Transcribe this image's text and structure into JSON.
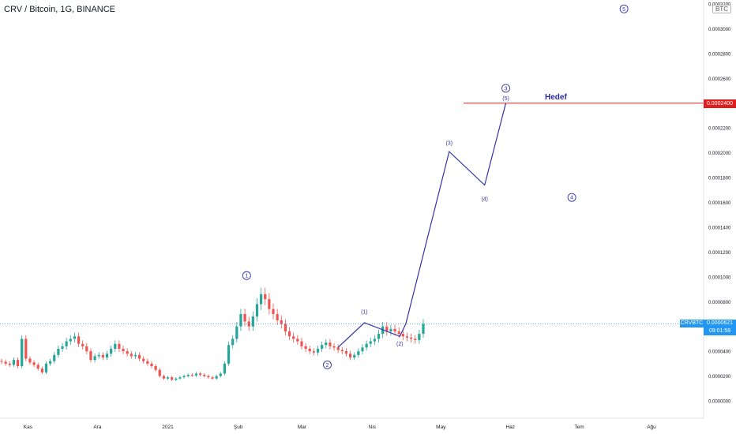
{
  "header": {
    "title": "CRV / Bitcoin, 1G, BINANCE",
    "currency_badge": "BTC"
  },
  "colors": {
    "up": "#26a69a",
    "down": "#ef5350",
    "wave": "#3333aa",
    "target": "#e01e1e",
    "current": "#2196f3"
  },
  "chart_data": {
    "type": "candlestick",
    "symbol": "CRVBTC",
    "timeframe": "1G",
    "exchange": "BINANCE",
    "ylim": [
      0,
      0.00032
    ],
    "y_ticks": [
      "0.0000000",
      "0.0000200",
      "0.0000400",
      "0.0000600",
      "0.0000800",
      "0.0001000",
      "0.0001200",
      "0.0001400",
      "0.0001600",
      "0.0001800",
      "0.0002000",
      "0.0002200",
      "0.0002400",
      "0.0002600",
      "0.0002800",
      "0.0003000",
      "0.0003200"
    ],
    "x_ticks": [
      "Kas",
      "Ara",
      "2021",
      "Şub",
      "Mar",
      "Nis",
      "May",
      "Haz",
      "Tem",
      "Ağu"
    ],
    "current_price": {
      "symbol": "CRVBTC",
      "value": "0.0000621",
      "countdown": "09:01:58",
      "y": 6.21e-05
    },
    "target": {
      "label": "Hedef",
      "value": "0.0002400",
      "y": 0.00024
    },
    "closes": [
      3.15e-05,
      3e-05,
      2.9e-05,
      3.3e-05,
      2.8e-05,
      5e-05,
      3.4e-05,
      3.1e-05,
      2.9e-05,
      2.6e-05,
      2.3e-05,
      3e-05,
      3.2e-05,
      3.7e-05,
      4.2e-05,
      4.4e-05,
      4.8e-05,
      5e-05,
      5.2e-05,
      4.6e-05,
      4.4e-05,
      4e-05,
      3.3e-05,
      3.6e-05,
      3.7e-05,
      3.5e-05,
      3.8e-05,
      4.2e-05,
      4.6e-05,
      4.2e-05,
      4e-05,
      3.8e-05,
      3.6e-05,
      3.7e-05,
      3.4e-05,
      3.2e-05,
      3e-05,
      2.8e-05,
      2.5e-05,
      2e-05,
      1.8e-05,
      1.9e-05,
      1.7e-05,
      1.8e-05,
      1.9e-05,
      2e-05,
      2.1e-05,
      2.05e-05,
      2.2e-05,
      2.1e-05,
      2e-05,
      1.9e-05,
      1.8e-05,
      2e-05,
      2.2e-05,
      3e-05,
      4.5e-05,
      5e-05,
      6e-05,
      7e-05,
      6.4e-05,
      6e-05,
      6.8e-05,
      7.8e-05,
      8.6e-05,
      8.2e-05,
      7.4e-05,
      7e-05,
      6.5e-05,
      6.2e-05,
      5.6e-05,
      5.2e-05,
      5e-05,
      4.8e-05,
      4.4e-05,
      4.2e-05,
      4e-05,
      3.9e-05,
      4.2e-05,
      4.5e-05,
      4.7e-05,
      4.4e-05,
      4.3e-05,
      4.1e-05,
      4e-05,
      3.8e-05,
      3.5e-05,
      3.7e-05,
      4e-05,
      4.3e-05,
      4.6e-05,
      4.8e-05,
      5e-05,
      5.4e-05,
      6e-05,
      5.6e-05,
      5.8e-05,
      5.6e-05,
      5.4e-05,
      5.2e-05,
      5.1e-05,
      5e-05,
      4.9e-05,
      5.4e-05,
      6.21e-05
    ],
    "wave_labels": [
      {
        "text": "1",
        "circled": true,
        "x": 0.3505,
        "y": 0.000101
      },
      {
        "text": "2",
        "circled": true,
        "x": 0.4652,
        "y": 2.9e-05
      },
      {
        "text": "(1)",
        "circled": false,
        "x": 0.5178,
        "y": 7.2e-05
      },
      {
        "text": "(2)",
        "circled": false,
        "x": 0.5682,
        "y": 4.6e-05
      },
      {
        "text": "(3)",
        "circled": false,
        "x": 0.6384,
        "y": 0.000208
      },
      {
        "text": "(4)",
        "circled": false,
        "x": 0.6888,
        "y": 0.000163
      },
      {
        "text": "(5)",
        "circled": false,
        "x": 0.7189,
        "y": 0.000244
      },
      {
        "text": "3",
        "circled": true,
        "x": 0.7189,
        "y": 0.000252
      },
      {
        "text": "4",
        "circled": true,
        "x": 0.8127,
        "y": 0.000164
      },
      {
        "text": "5",
        "circled": true,
        "x": 0.8868,
        "y": 0.000316
      }
    ],
    "wave_path": [
      {
        "x": 0.4803,
        "y": 4.3e-05
      },
      {
        "x": 0.5178,
        "y": 6.3e-05
      },
      {
        "x": 0.5682,
        "y": 5.2e-05
      },
      {
        "x": 0.5768,
        "y": 6.21e-05
      },
      {
        "x": 0.6384,
        "y": 0.000201
      },
      {
        "x": 0.6888,
        "y": 0.000174
      },
      {
        "x": 0.7189,
        "y": 0.00024
      }
    ]
  }
}
